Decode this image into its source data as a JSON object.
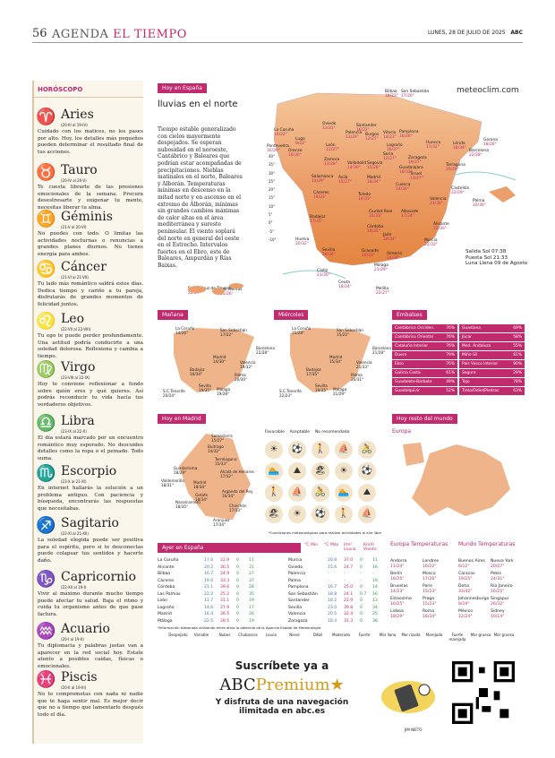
{
  "header": {
    "page_number": "56",
    "section_prefix": "AGENDA",
    "section_name": "EL TIEMPO",
    "dateline": "LUNES, 28 DE JULIO DE 2025",
    "logo": "ABC"
  },
  "horoscope": {
    "title": "HORÓSCOPO",
    "signs": [
      {
        "glyph": "♈",
        "name": "Aries",
        "dates": "(20-III al 19-IV)",
        "text": "Cuidado con los matices, no los pases por alto. Hoy, los detalles más pequeños pueden determinar el resultado final de tus acciones."
      },
      {
        "glyph": "♉",
        "name": "Tauro",
        "dates": "(20-IV al 20-V)",
        "text": "Te cuesta librarte de las presiones emocionales de la semana. Procura desestresarte y oxigenar tu mente, necesitas liberar tu alma."
      },
      {
        "glyph": "♊",
        "name": "Géminis",
        "dates": "(21-V al 20-VI)",
        "text": "No puedes con todo. O limitas las actividades nocturnas o renuncias a grandes planes diurnos. No tienes energía para ambos."
      },
      {
        "glyph": "♋",
        "name": "Cáncer",
        "dates": "(21-VI al 21-VII)",
        "text": "Tu lado más romántico saldrá estos días. Dedica tiempo y cariño a tu pareja, disfrutarás de grandes momentos de felicidad juntos."
      },
      {
        "glyph": "♌",
        "name": "Leo",
        "dates": "(22-VII al 22-VIII)",
        "text": "Tu ego te puede perder profundamente. Una actitud podría conducirte a una soledad dolorosa. Reflexiona y cambia a tiempo."
      },
      {
        "glyph": "♍",
        "name": "Virgo",
        "dates": "(23-VIII al 22-IX)",
        "text": "Hoy te conviene reflexionar a fondo sobre quién eres y qué quieres. Así podrás reconducir tu vida hacia tus verdaderos objetivos."
      },
      {
        "glyph": "♎",
        "name": "Libra",
        "dates": "(23-IX al 22-X)",
        "text": "El día estará marcado por un encuentro romántico muy esperado. No descuides detalles como la ropa o el peinado. Todo suma."
      },
      {
        "glyph": "♏",
        "name": "Escorpio",
        "dates": "(23-X al 21-XI)",
        "text": "En internet hallarás la solución a un problema antiguo. Con paciencia y búsqueda, encontrarás las respuestas que necesitabas."
      },
      {
        "glyph": "♐",
        "name": "Sagitario",
        "dates": "(22-XI al 21-XII)",
        "text": "La soledad elegida puede ser positiva para el espíritu, pero si te desconectas puede colapsar tus sentidos y hacerte daño."
      },
      {
        "glyph": "♑",
        "name": "Capricornio",
        "dates": "(22-XII al 19-I)",
        "text": "Vivir al máximo durante mucho tiempo puede afectar tu salud. Baja el ritmo y cuida tu organismo antes de que pase factura."
      },
      {
        "glyph": "♒",
        "name": "Acuario",
        "dates": "(20-I al 19-II)",
        "text": "Tu diplomacia y palabras justas van a aparecer en la red social hoy. Estate atento a posibles caídas, físicas o emocionales."
      },
      {
        "glyph": "♓",
        "name": "Piscis",
        "dates": "(20-II al 19-III)",
        "text": "No te comprometas con nada ni nadie que te haga sentir mal. Es mejor decir que no a tiempo que lamentarlo después todo el día."
      }
    ]
  },
  "weather": {
    "tag_spain": "Hoy en España",
    "headline": "lluvias en el norte",
    "lead": "Tiempo estable generalizado con cielos mayormente despejados. Se esperan nubosidad en el noroeste, Cantábrico y Baleares que podrían estar acompañadas de precipitaciones. Nieblas matinales en el norte, Baleares y Alborán. Temperaturas mínimas en descenso en la mitad norte y en ascenso en el extremo de Alborán, mínimas sin grandes cambios máximas de calor altas en el área mediterránea y sureste peninsular. El viento soplará del norte en general del oeste en el Estrecho. Intervalos fuertes en el Ebro, este de Baleares, Ampurdán y Rías Baixas.",
    "brand": "meteoclim.com",
    "scale": [
      "40°",
      "35°",
      "30°",
      "25°",
      "20°",
      "15°",
      "10°",
      "5°",
      "0°",
      "-5°",
      "-10°"
    ],
    "cities": [
      {
        "name": "La Coruña",
        "temp": "16/22°"
      },
      {
        "name": "Lugo",
        "temp": "9/22°"
      },
      {
        "name": "Oviedo",
        "temp": "13/21°"
      },
      {
        "name": "Santander",
        "temp": "16/22°"
      },
      {
        "name": "Bilbao",
        "temp": "18/23°"
      },
      {
        "name": "San Sebastián",
        "temp": "17/20°"
      },
      {
        "name": "Pontevedra",
        "temp": "16/26°"
      },
      {
        "name": "Orense",
        "temp": "16/30°"
      },
      {
        "name": "León",
        "temp": "11/27°"
      },
      {
        "name": "Palencia",
        "temp": "13/29°"
      },
      {
        "name": "Burgos",
        "temp": "12/27°"
      },
      {
        "name": "Vitoria",
        "temp": "14/23°"
      },
      {
        "name": "Pamplona",
        "temp": "16/28°"
      },
      {
        "name": "Huesca",
        "temp": "17/32°"
      },
      {
        "name": "Lérida",
        "temp": "18/34°"
      },
      {
        "name": "Gerona",
        "temp": "18/28°"
      },
      {
        "name": "Barcelona",
        "temp": "22/28°"
      },
      {
        "name": "Tarragona",
        "temp": "20/29°"
      },
      {
        "name": "Logroño",
        "temp": "16/27°"
      },
      {
        "name": "Soria",
        "temp": "12/27°"
      },
      {
        "name": "Zaragoza",
        "temp": "19/27°"
      },
      {
        "name": "Zamora",
        "temp": "13/28°"
      },
      {
        "name": "Valladolid",
        "temp": "14/30°"
      },
      {
        "name": "Segovia",
        "temp": "15/28°"
      },
      {
        "name": "Guadalajara",
        "temp": "16/32°"
      },
      {
        "name": "Teruel",
        "temp": "13/27°"
      },
      {
        "name": "Castellón",
        "temp": "22/29°"
      },
      {
        "name": "Salamanca",
        "temp": "14/29°"
      },
      {
        "name": "Ávila",
        "temp": "15/27°"
      },
      {
        "name": "Madrid",
        "temp": "18/34°"
      },
      {
        "name": "Cuenca",
        "temp": "14/30°"
      },
      {
        "name": "Valencia",
        "temp": "23/30°"
      },
      {
        "name": "Palma",
        "temp": "20/30°"
      },
      {
        "name": "Cáceres",
        "temp": "19/33°"
      },
      {
        "name": "Toledo",
        "temp": "18/35°"
      },
      {
        "name": "Ciudad Real",
        "temp": "16/33°"
      },
      {
        "name": "Albacete",
        "temp": "17/34°"
      },
      {
        "name": "Alicante",
        "temp": "22/30°"
      },
      {
        "name": "Badajoz",
        "temp": "17/35°"
      },
      {
        "name": "Córdoba",
        "temp": "19/35°"
      },
      {
        "name": "Jaén",
        "temp": "20/34°"
      },
      {
        "name": "Murcia",
        "temp": "22/33°"
      },
      {
        "name": "Huelva",
        "temp": "20/32°"
      },
      {
        "name": "Sevilla",
        "temp": "20/36°"
      },
      {
        "name": "Granada",
        "temp": "20/33°"
      },
      {
        "name": "Almería",
        "temp": "24/30°"
      },
      {
        "name": "Málaga",
        "temp": "21/29°"
      },
      {
        "name": "Cádiz",
        "temp": "21/30°"
      },
      {
        "name": "Ceuta",
        "temp": "18/24°"
      },
      {
        "name": "Melilla",
        "temp": "22/27°"
      },
      {
        "name": "Santa Cruz de Tenerife",
        "temp": "22/27°"
      },
      {
        "name": "Las Palmas",
        "temp": "21/26°"
      }
    ],
    "sun": {
      "salida": "Salida Sol 07:38",
      "puesta": "Puesta Sol 21:33",
      "luna": "Luna Llena 09 de Agosto"
    }
  },
  "forecast": {
    "tag_manana": "Mañana",
    "tag_miercoles": "Miércoles",
    "manana": [
      {
        "name": "La Coruña",
        "temp": "14/26°"
      },
      {
        "name": "San Sebastián",
        "temp": "17/22°"
      },
      {
        "name": "Barcelona",
        "temp": "22/28°"
      },
      {
        "name": "Madrid",
        "temp": "14/30°"
      },
      {
        "name": "Badajoz",
        "temp": "16/34°"
      },
      {
        "name": "Valencia",
        "temp": "19/32°"
      },
      {
        "name": "Palma",
        "temp": "20/30°"
      },
      {
        "name": "Sevilla",
        "temp": "19/35°"
      },
      {
        "name": "Málaga",
        "temp": "19/28°"
      },
      {
        "name": "S.C.Tenerife",
        "temp": "20/24°"
      }
    ],
    "miercoles": [
      {
        "name": "La Coruña",
        "temp": "15/28°"
      },
      {
        "name": "San Sebastián",
        "temp": "15/22°"
      },
      {
        "name": "Barcelona",
        "temp": "21/28°"
      },
      {
        "name": "Madrid",
        "temp": "15/34°"
      },
      {
        "name": "Badajoz",
        "temp": "17/35°"
      },
      {
        "name": "Valencia",
        "temp": "21/33°"
      },
      {
        "name": "Palma",
        "temp": "20/31°"
      },
      {
        "name": "Sevilla",
        "temp": "19/35°"
      },
      {
        "name": "Málaga",
        "temp": "21/29°"
      },
      {
        "name": "S.C.Tenerife",
        "temp": "22/23°"
      }
    ]
  },
  "embalses": {
    "tag": "Embalses",
    "left": [
      {
        "name": "Cantábrico Occiden.",
        "pct": "76%",
        "color": "#c22a6e"
      },
      {
        "name": "Cantábrico Oriental",
        "pct": "76%",
        "color": "#c22a6e"
      },
      {
        "name": "Cataluña Interior",
        "pct": "76%",
        "color": "#c22a6e"
      },
      {
        "name": "Duero",
        "pct": "79%",
        "color": "#c22a6e"
      },
      {
        "name": "Ebro",
        "pct": "76%",
        "color": "#c22a6e"
      },
      {
        "name": "Galicia Costa",
        "pct": "61%",
        "color": "#c22a6e"
      },
      {
        "name": "Guadalete-Barbate",
        "pct": "49%",
        "color": "#c22a6e"
      },
      {
        "name": "Guadalquivir",
        "pct": "52%",
        "color": "#c22a6e"
      }
    ],
    "right": [
      {
        "name": "Guadiana",
        "pct": "69%",
        "color": "#c22a6e"
      },
      {
        "name": "Júcar",
        "pct": "58%",
        "color": "#c22a6e"
      },
      {
        "name": "Med. Andaluza",
        "pct": "55%",
        "color": "#c22a6e"
      },
      {
        "name": "Miño-Sil",
        "pct": "81%",
        "color": "#c22a6e"
      },
      {
        "name": "País Vasco Interior",
        "pct": "90%",
        "color": "#c22a6e"
      },
      {
        "name": "Segura",
        "pct": "29%",
        "color": "#c22a6e"
      },
      {
        "name": "Tajo",
        "pct": "78%",
        "color": "#c22a6e"
      },
      {
        "name": "Tinto/Odiel/Piedras",
        "pct": "63%",
        "color": "#c22a6e"
      }
    ]
  },
  "madrid": {
    "tag": "Hoy en Madrid",
    "cities": [
      {
        "name": "Somosierra",
        "temp": "15/27°"
      },
      {
        "name": "Buitrago",
        "temp": "14/32°"
      },
      {
        "name": "Torrelaguna",
        "temp": "15/33°"
      },
      {
        "name": "Guadarrama",
        "temp": "18/29°"
      },
      {
        "name": "Alcalá de Henares",
        "temp": "17/32°"
      },
      {
        "name": "Valdemorillo",
        "temp": "18/31°"
      },
      {
        "name": "Madrid",
        "temp": "18/34°"
      },
      {
        "name": "Arganda del Rey",
        "temp": "16/34°"
      },
      {
        "name": "Getafe",
        "temp": "18/34°"
      },
      {
        "name": "Navalcarnero",
        "temp": "18/35°"
      },
      {
        "name": "Chinchón",
        "temp": "17/33°"
      },
      {
        "name": "Aranjuez",
        "temp": "17/34°"
      }
    ],
    "legend": [
      "Favorable",
      "Aceptable",
      "No recomendado"
    ],
    "note": "*Condiciones meteorológicas para realizar actividades al aire libre"
  },
  "world": {
    "tag": "Hoy resto del mundo",
    "region": "Europa"
  },
  "ayer": {
    "tag": "Ayer en España",
    "headers": [
      "°C Mín",
      "°C Máx",
      "l/m² Lluvia",
      "Km/h Viento"
    ],
    "left": [
      [
        "La Coruña",
        "17.6",
        "22.9",
        "0",
        "11"
      ],
      [
        "Alicante",
        "20.2",
        "30.5",
        "0",
        "31"
      ],
      [
        "Bilbao",
        "16.7",
        "24.9",
        "0",
        "27"
      ],
      [
        "Cáceres",
        "19.6",
        "33.3",
        "0",
        "37"
      ],
      [
        "Córdoba",
        "21.1",
        "39.6",
        "0",
        "28"
      ],
      [
        "Las Palmas",
        "22.2",
        "25.2",
        "0",
        "35"
      ],
      [
        "León",
        "11.7",
        "31.1",
        "0",
        "19"
      ],
      [
        "Logroño",
        "14.6",
        "27.9",
        "0",
        "17"
      ],
      [
        "Madrid",
        "16.4",
        "36.5",
        "0",
        "26"
      ],
      [
        "Málaga",
        "22.5",
        "28.5",
        "0",
        "19"
      ]
    ],
    "right": [
      [
        "Murcia",
        "20.8",
        "37.0",
        "0",
        "11"
      ],
      [
        "Oviedo",
        "15.6",
        "24.7",
        "0",
        "16"
      ],
      [
        "Palencia",
        "-",
        "-",
        "-",
        "-"
      ],
      [
        "Palma",
        "-",
        "-",
        "-",
        "19"
      ],
      [
        "Pamplona",
        "16.7",
        "25.0",
        "0",
        "14"
      ],
      [
        "San Sebastián",
        "18.8",
        "24.1",
        "0.7",
        "16"
      ],
      [
        "Santander",
        "18.2",
        "22.9",
        "0",
        "13"
      ],
      [
        "Sevilla",
        "23.0",
        "39.8",
        "0",
        "34"
      ],
      [
        "Valencia",
        "20.5",
        "32.4",
        "0",
        "25"
      ],
      [
        "Zaragoza",
        "18.4",
        "31.3",
        "0",
        "36"
      ]
    ],
    "source": "*Información elaborada utilizando entre otros la obtenida de la Agencia Estatal de Meteorología",
    "symbols": [
      "Despejado",
      "Variable",
      "Nubes",
      "Chubascos",
      "Lluvia",
      "Nieve",
      "Débil",
      "Moderado",
      "Fuerte",
      "Mar llana",
      "Mar rizada",
      "Marejada",
      "Fuerte marejada",
      "Mar gruesa",
      "Mar gruesa"
    ]
  },
  "europe_temps": {
    "title": "Europa Temperaturas",
    "rows": [
      [
        "Andorra",
        "11/24°"
      ],
      [
        "Berlín",
        "16/25°"
      ],
      [
        "Bruselas",
        "14/23°"
      ],
      [
        "Estocolmo",
        "16/25°"
      ],
      [
        "Lisboa",
        "18/29°"
      ],
      [
        "Londres",
        "16/22°"
      ],
      [
        "Moscú",
        "17/26°"
      ],
      [
        "París",
        "15/23°"
      ],
      [
        "Praga",
        "15/23°"
      ],
      [
        "Roma",
        "18/34°"
      ]
    ]
  },
  "world_temps": {
    "title": "Mundo Temperaturas",
    "rows": [
      [
        "Buenos Aires",
        "6/12°"
      ],
      [
        "Caracas",
        "19/25°"
      ],
      [
        "Doha",
        "33/42°"
      ],
      [
        "Johannesburgo",
        "8/19°"
      ],
      [
        "México",
        "12/24°"
      ],
      [
        "Nueva York",
        "20/27°"
      ],
      [
        "Pekín",
        "24/31°"
      ],
      [
        "Río Janeiro",
        "16/25°"
      ],
      [
        "Singapur",
        "26/32°"
      ],
      [
        "Sidney",
        "10/14°"
      ]
    ]
  },
  "subscribe": {
    "line1": "Suscríbete ya a",
    "brand": "ABC",
    "brand2": "Premium",
    "line2": "Y disfruta de una navegación",
    "line3": "ilimitada en abc.es",
    "signature": "JIM NIETO"
  }
}
